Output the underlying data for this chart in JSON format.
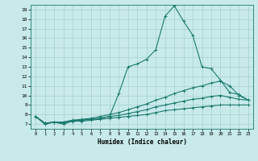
{
  "xlabel": "Humidex (Indice chaleur)",
  "bg_color": "#c8eaea",
  "line_color": "#1a7a6e",
  "grid_color": "#a8d0d0",
  "xlim": [
    -0.5,
    23.5
  ],
  "ylim": [
    6.5,
    19.5
  ],
  "xticks": [
    0,
    1,
    2,
    3,
    4,
    5,
    6,
    7,
    8,
    9,
    10,
    11,
    12,
    13,
    14,
    15,
    16,
    17,
    18,
    19,
    20,
    21,
    22,
    23
  ],
  "yticks": [
    7,
    8,
    9,
    10,
    11,
    12,
    13,
    14,
    15,
    16,
    17,
    18,
    19
  ],
  "series": [
    {
      "x": [
        0,
        1,
        2,
        3,
        4,
        5,
        6,
        7,
        8,
        9,
        10,
        11,
        12,
        13,
        14,
        15,
        16,
        17,
        18,
        19,
        20,
        21,
        22,
        23
      ],
      "y": [
        7.8,
        7.0,
        7.2,
        7.0,
        7.3,
        7.4,
        7.5,
        7.6,
        7.8,
        10.2,
        13.0,
        13.3,
        13.8,
        14.8,
        18.3,
        19.4,
        17.8,
        16.3,
        13.0,
        12.8,
        11.6,
        10.3,
        10.1,
        9.5
      ]
    },
    {
      "x": [
        0,
        1,
        2,
        3,
        4,
        5,
        6,
        7,
        8,
        9,
        10,
        11,
        12,
        13,
        14,
        15,
        16,
        17,
        18,
        19,
        20,
        21,
        22,
        23
      ],
      "y": [
        7.8,
        7.0,
        7.2,
        7.2,
        7.4,
        7.5,
        7.6,
        7.8,
        8.0,
        8.2,
        8.5,
        8.8,
        9.1,
        9.5,
        9.8,
        10.2,
        10.5,
        10.8,
        11.0,
        11.3,
        11.5,
        11.0,
        10.0,
        9.5
      ]
    },
    {
      "x": [
        0,
        1,
        2,
        3,
        4,
        5,
        6,
        7,
        8,
        9,
        10,
        11,
        12,
        13,
        14,
        15,
        16,
        17,
        18,
        19,
        20,
        21,
        22,
        23
      ],
      "y": [
        7.8,
        7.1,
        7.2,
        7.2,
        7.4,
        7.4,
        7.5,
        7.6,
        7.8,
        7.9,
        8.1,
        8.3,
        8.5,
        8.8,
        9.0,
        9.2,
        9.4,
        9.6,
        9.7,
        9.9,
        10.0,
        9.8,
        9.6,
        9.5
      ]
    },
    {
      "x": [
        0,
        1,
        2,
        3,
        4,
        5,
        6,
        7,
        8,
        9,
        10,
        11,
        12,
        13,
        14,
        15,
        16,
        17,
        18,
        19,
        20,
        21,
        22,
        23
      ],
      "y": [
        7.8,
        7.1,
        7.2,
        7.1,
        7.3,
        7.3,
        7.4,
        7.5,
        7.6,
        7.7,
        7.8,
        7.9,
        8.0,
        8.2,
        8.4,
        8.5,
        8.6,
        8.7,
        8.8,
        8.9,
        9.0,
        9.0,
        9.0,
        9.0
      ]
    }
  ]
}
